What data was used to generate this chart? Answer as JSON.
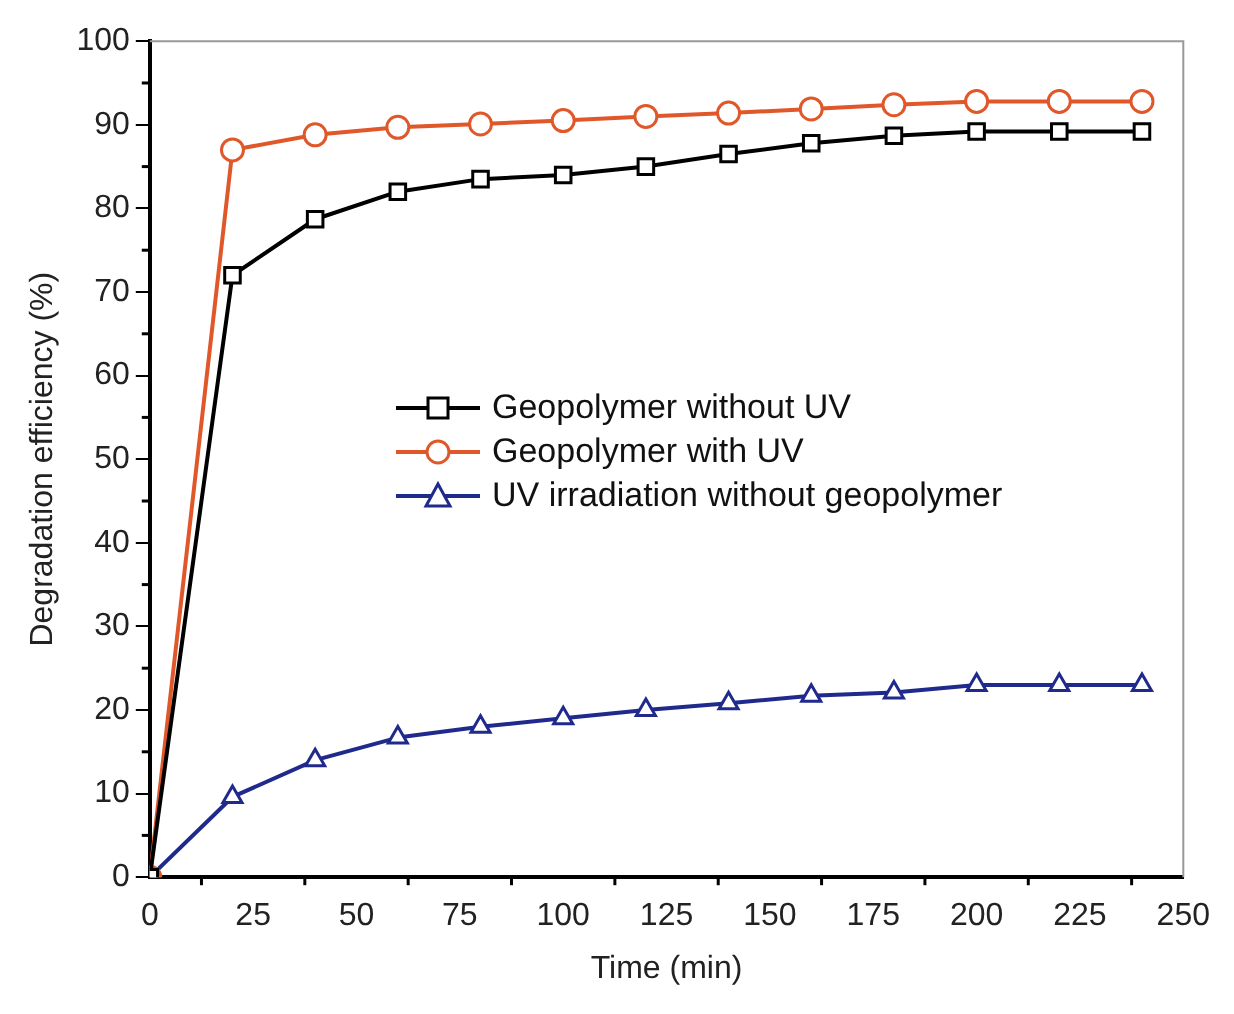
{
  "chart_data": {
    "type": "line",
    "xlabel": "Time (min)",
    "ylabel": "Degradation efficiency (%)",
    "x": [
      0,
      20,
      40,
      60,
      80,
      100,
      120,
      140,
      160,
      180,
      200,
      220,
      240
    ],
    "series": [
      {
        "name": "Geopolymer without UV",
        "color": "#000000",
        "marker": "square",
        "values": [
          0,
          72,
          78.7,
          82,
          83.5,
          84,
          85,
          86.5,
          87.8,
          88.7,
          89.2,
          89.2,
          89.2
        ]
      },
      {
        "name": "Geopolymer with UV",
        "color": "#e0572a",
        "marker": "circle",
        "values": [
          0,
          87,
          88.8,
          89.7,
          90.1,
          90.5,
          91,
          91.4,
          91.9,
          92.4,
          92.8,
          92.8,
          92.8
        ]
      },
      {
        "name": "UV irradiation without geopolymer",
        "color": "#1f2a8c",
        "marker": "triangle",
        "values": [
          0,
          9.6,
          14,
          16.7,
          18,
          19,
          20,
          20.8,
          21.7,
          22.1,
          23,
          23,
          23
        ]
      }
    ],
    "xlim": [
      0,
      250
    ],
    "xticks": [
      0,
      25,
      50,
      75,
      100,
      125,
      150,
      175,
      200,
      225,
      250
    ],
    "ylim": [
      0,
      100
    ],
    "yticks": [
      0,
      10,
      20,
      30,
      40,
      50,
      60,
      70,
      80,
      90,
      100
    ],
    "grid": false,
    "legend": "center",
    "line_style": "solid"
  }
}
